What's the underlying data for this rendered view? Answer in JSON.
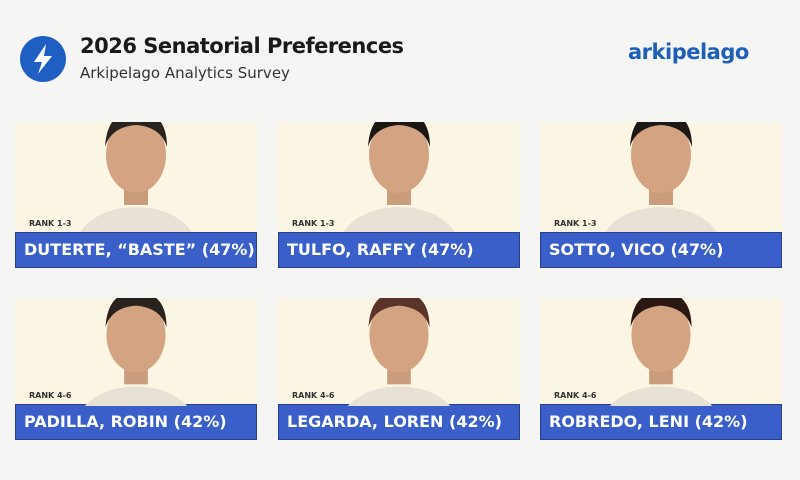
{
  "header": {
    "title": "2026 Senatorial Preferences",
    "subtitle": "Arkipelago Analytics Survey",
    "brand": "arkipelago"
  },
  "colors": {
    "accent": "#3a5fc9",
    "card_bg": "#fbf6e3",
    "logo": "#1f5fc4"
  },
  "candidates": [
    {
      "rank": "RANK 1-3",
      "name": "DUTERTE, “BASTE” (47%)",
      "percent": 47
    },
    {
      "rank": "RANK 1-3",
      "name": "TULFO, RAFFY (47%)",
      "percent": 47
    },
    {
      "rank": "RANK 1-3",
      "name": "SOTTO, VICO (47%)",
      "percent": 47
    },
    {
      "rank": "RANK 4-6",
      "name": "PADILLA, ROBIN (42%)",
      "percent": 42
    },
    {
      "rank": "RANK 4-6",
      "name": "LEGARDA, LOREN (42%)",
      "percent": 42
    },
    {
      "rank": "RANK 4-6",
      "name": "ROBREDO, LENI (42%)",
      "percent": 42
    }
  ]
}
